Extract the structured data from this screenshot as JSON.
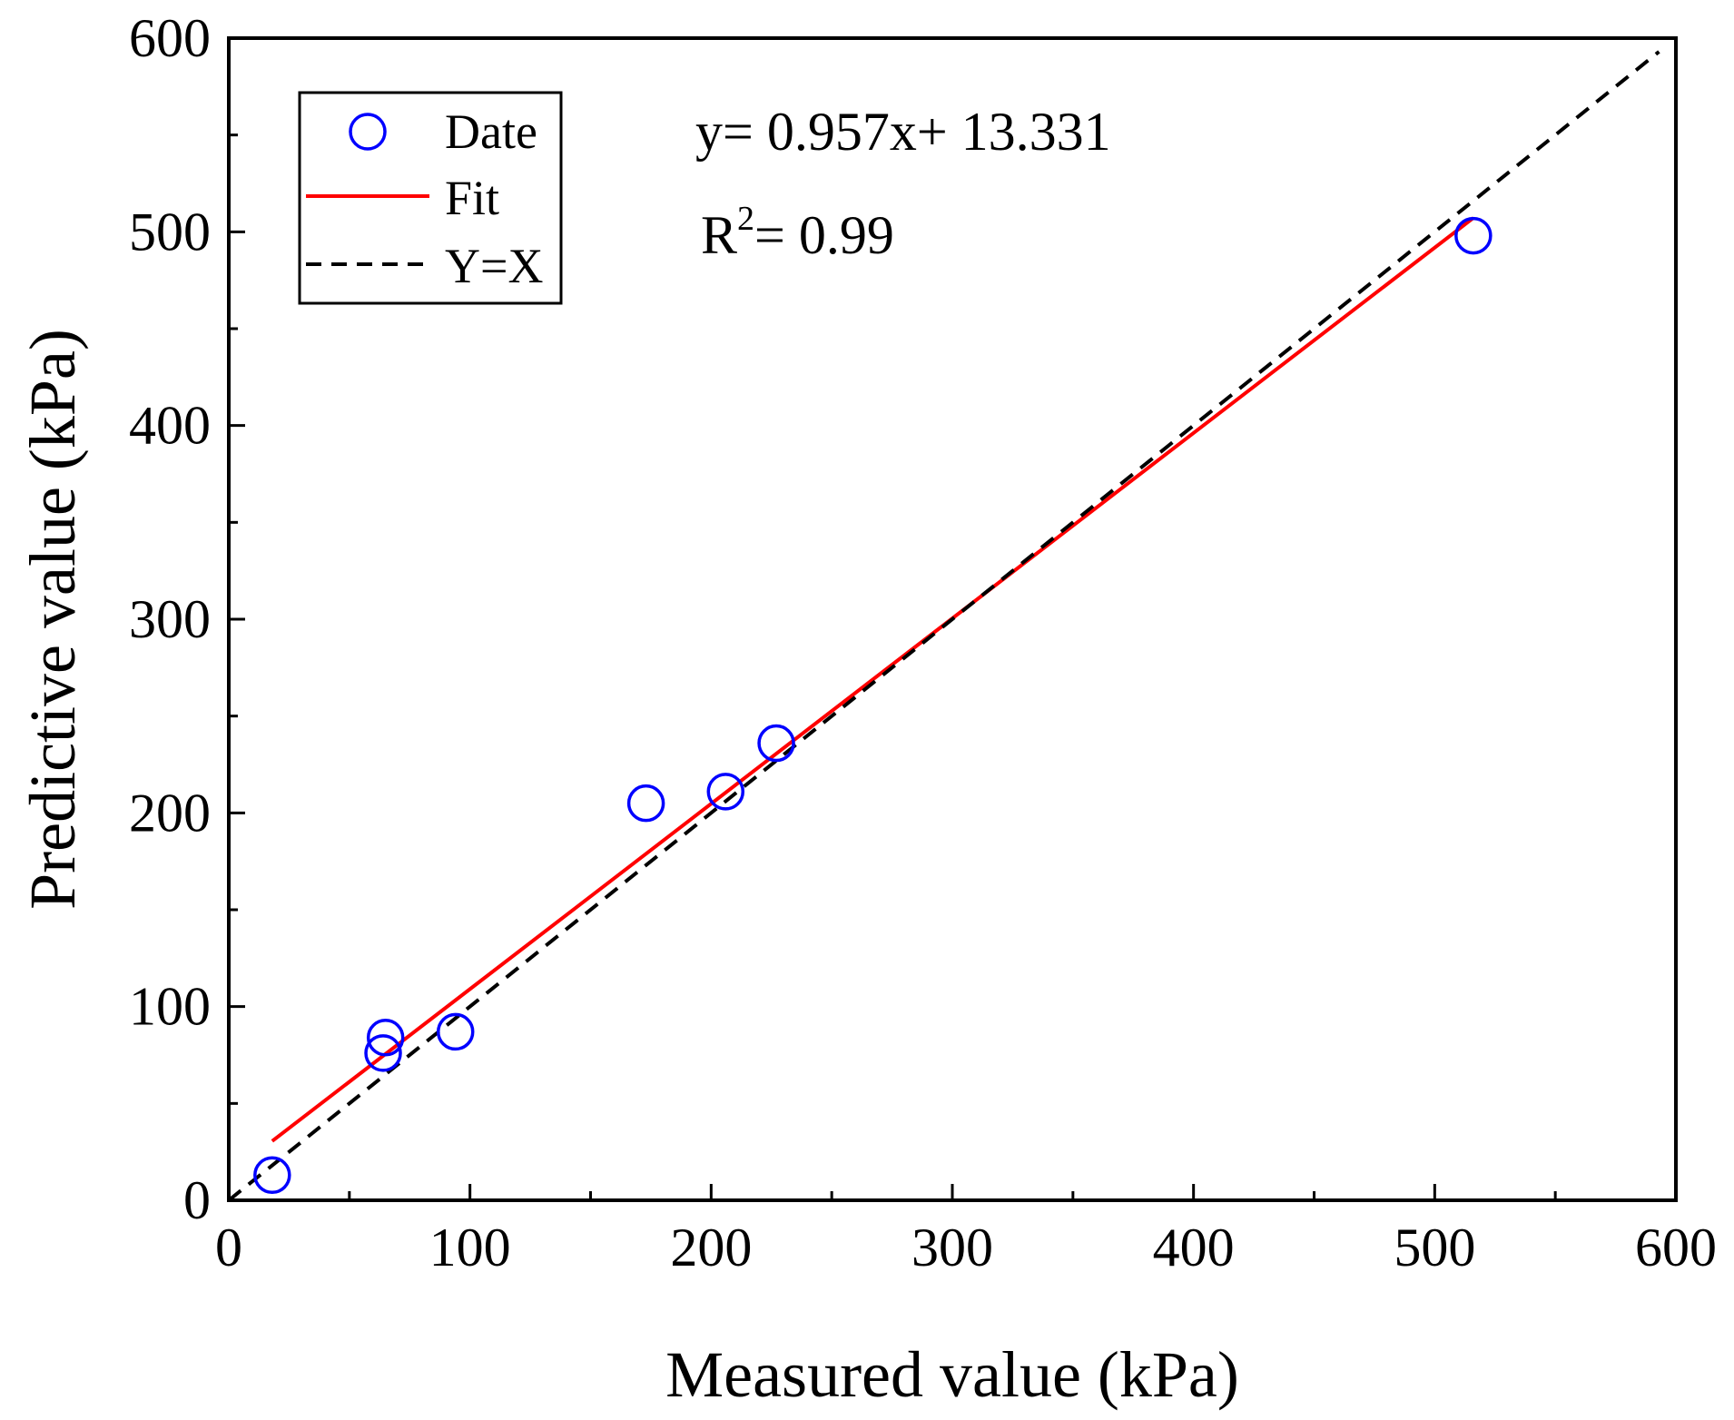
{
  "chart_data": {
    "type": "scatter",
    "xlabel": "Measured value (kPa)",
    "ylabel": "Predictive value (kPa)",
    "xlim": [
      0,
      600
    ],
    "ylim": [
      0,
      600
    ],
    "xticks": [
      "0",
      "100",
      "200",
      "300",
      "400",
      "500",
      "600"
    ],
    "yticks": [
      "0",
      "100",
      "200",
      "300",
      "400",
      "500",
      "600"
    ],
    "grid": false,
    "legend_position": "top-left",
    "series": [
      {
        "name": "Date",
        "kind": "points",
        "marker": "open-circle",
        "color": "#0000ff",
        "x": [
          18,
          64,
          65,
          94,
          173,
          206,
          227,
          516
        ],
        "y": [
          13,
          76,
          84,
          87,
          205,
          211,
          236,
          498
        ]
      },
      {
        "name": "Fit",
        "kind": "line",
        "color": "#ff0000",
        "x_range": [
          18,
          516
        ],
        "slope": 0.957,
        "intercept": 13.331
      },
      {
        "name": "Y=X",
        "kind": "line",
        "style": "dashed",
        "color": "#000000",
        "x_range": [
          0,
          593
        ]
      }
    ],
    "equation": "y= 0.957x+ 13.331",
    "r2_text": {
      "base": "R",
      "sup": "2",
      "rest": "= 0.99"
    }
  }
}
